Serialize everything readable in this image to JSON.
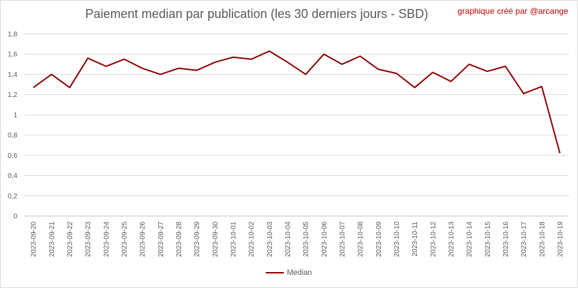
{
  "chart_data": {
    "type": "line",
    "title": "Paiement median par publication (les 30 derniers jours - SBD)",
    "credit": "graphique créé par @arcange",
    "xlabel": "",
    "ylabel": "",
    "ylim": [
      0,
      1.8
    ],
    "yticks": [
      "0",
      "0,2",
      "0,4",
      "0,6",
      "0,8",
      "1",
      "1,2",
      "1,4",
      "1,6",
      "1,8"
    ],
    "grid": true,
    "legend_position": "bottom",
    "color": "#8b0000",
    "categories": [
      "2023-09-20",
      "2023-09-21",
      "2023-09-22",
      "2023-09-23",
      "2023-09-24",
      "2023-09-25",
      "2023-09-26",
      "2023-09-27",
      "2023-09-28",
      "2023-09-29",
      "2023-09-30",
      "2023-10-01",
      "2023-10-02",
      "2023-10-03",
      "2023-10-04",
      "2023-10-05",
      "2023-10-06",
      "2023-10-07",
      "2023-10-08",
      "2023-10-09",
      "2023-10-10",
      "2023-10-11",
      "2023-10-12",
      "2023-10-13",
      "2023-10-14",
      "2023-10-15",
      "2023-10-16",
      "2023-10-17",
      "2023-10-18",
      "2023-10-19"
    ],
    "series": [
      {
        "name": "Median",
        "values": [
          1.27,
          1.4,
          1.27,
          1.56,
          1.48,
          1.55,
          1.46,
          1.4,
          1.46,
          1.44,
          1.52,
          1.57,
          1.55,
          1.63,
          1.52,
          1.4,
          1.6,
          1.5,
          1.58,
          1.45,
          1.41,
          1.27,
          1.42,
          1.33,
          1.5,
          1.43,
          1.48,
          1.21,
          1.28,
          0.62
        ]
      }
    ]
  }
}
